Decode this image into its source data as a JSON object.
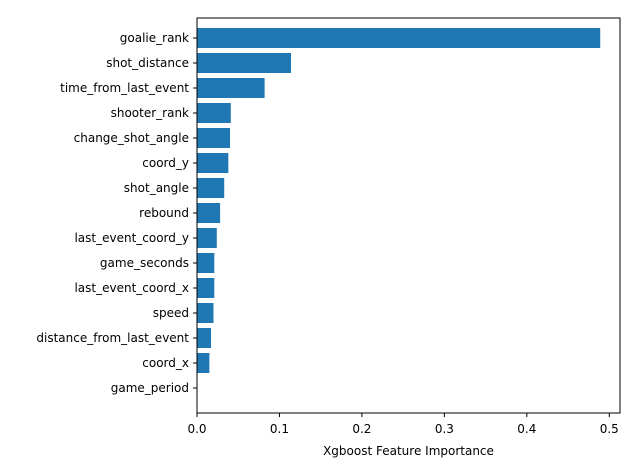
{
  "chart_data": {
    "type": "bar",
    "orientation": "horizontal",
    "title": "",
    "xlabel": "Xgboost Feature Importance",
    "ylabel": "",
    "xlim": [
      0,
      0.513
    ],
    "xticks": [
      0.0,
      0.1,
      0.2,
      0.3,
      0.4,
      0.5
    ],
    "xtick_labels": [
      "0.0",
      "0.1",
      "0.2",
      "0.3",
      "0.4",
      "0.5"
    ],
    "grid": false,
    "bar_color": "#1f77b4",
    "categories": [
      "goalie_rank",
      "shot_distance",
      "time_from_last_event",
      "shooter_rank",
      "change_shot_angle",
      "coord_y",
      "shot_angle",
      "rebound",
      "last_event_coord_y",
      "game_seconds",
      "last_event_coord_x",
      "speed",
      "distance_from_last_event",
      "coord_x",
      "game_period"
    ],
    "values": [
      0.489,
      0.114,
      0.082,
      0.041,
      0.04,
      0.038,
      0.033,
      0.028,
      0.024,
      0.021,
      0.021,
      0.02,
      0.017,
      0.015,
      0.0
    ]
  }
}
